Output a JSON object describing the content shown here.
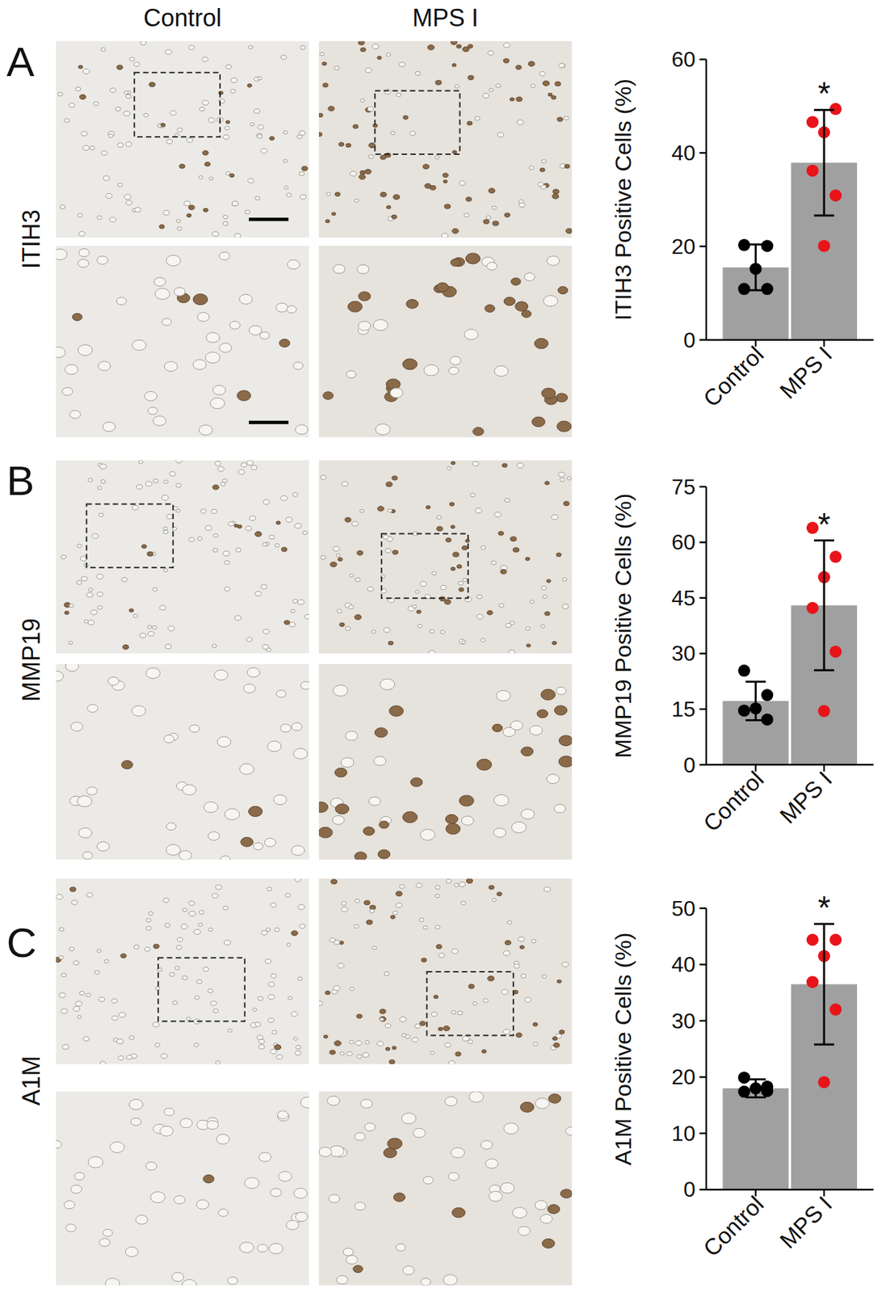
{
  "figure": {
    "columns": [
      "Control",
      "MPS I"
    ],
    "panels": [
      "A",
      "B",
      "C"
    ],
    "stains": [
      "ITIH3",
      "MMP19",
      "A1M"
    ]
  },
  "chart_data": [
    {
      "type": "bar",
      "y_label": "ITIH3 Positive Cells (%)",
      "categories": [
        "Control",
        "MPS I"
      ],
      "values": [
        15.5,
        37.9
      ],
      "errors": [
        4.9,
        11.3
      ],
      "color": "#a0a0a0",
      "points": [
        [
          20.3,
          20.1,
          15.2,
          10.9,
          10.9
        ],
        [
          46.6,
          49.4,
          44.4,
          36.2,
          30.9,
          20.1
        ]
      ],
      "point_colors": [
        "#000000",
        "#e8141a"
      ],
      "marker": "circle",
      "annotations": [
        {
          "text": "*",
          "category": "MPS I"
        }
      ],
      "ylim": [
        0,
        60
      ],
      "yticks": [
        0,
        20,
        40,
        60
      ],
      "grid": false
    },
    {
      "type": "bar",
      "y_label": "MMP19 Positive Cells (%)",
      "categories": [
        "Control",
        "MPS I"
      ],
      "values": [
        17.2,
        43.0
      ],
      "errors": [
        5.2,
        17.5
      ],
      "color": "#a0a0a0",
      "points": [
        [
          25.4,
          18.8,
          15.2,
          14.6,
          12.2
        ],
        [
          63.9,
          56.1,
          50.6,
          42.3,
          30.5,
          14.5
        ]
      ],
      "point_colors": [
        "#000000",
        "#e8141a"
      ],
      "marker": "circle",
      "annotations": [
        {
          "text": "*",
          "category": "MPS I"
        }
      ],
      "ylim": [
        0,
        75
      ],
      "yticks": [
        0,
        15,
        30,
        45,
        60,
        75
      ],
      "grid": false
    },
    {
      "type": "bar",
      "y_label": "A1M Positive Cells (%)",
      "categories": [
        "Control",
        "MPS I"
      ],
      "values": [
        18.0,
        36.5
      ],
      "errors": [
        1.6,
        10.7
      ],
      "color": "#a0a0a0",
      "points": [
        [
          19.9,
          18.3,
          18.0,
          17.4,
          17.5
        ],
        [
          44.4,
          44.4,
          41.5,
          36.9,
          32.0,
          19.1
        ]
      ],
      "point_colors": [
        "#000000",
        "#e8141a"
      ],
      "marker": "circle",
      "annotations": [
        {
          "text": "*",
          "category": "MPS I"
        }
      ],
      "ylim": [
        0,
        50
      ],
      "yticks": [
        0,
        10,
        20,
        30,
        40,
        50
      ],
      "grid": false
    }
  ]
}
